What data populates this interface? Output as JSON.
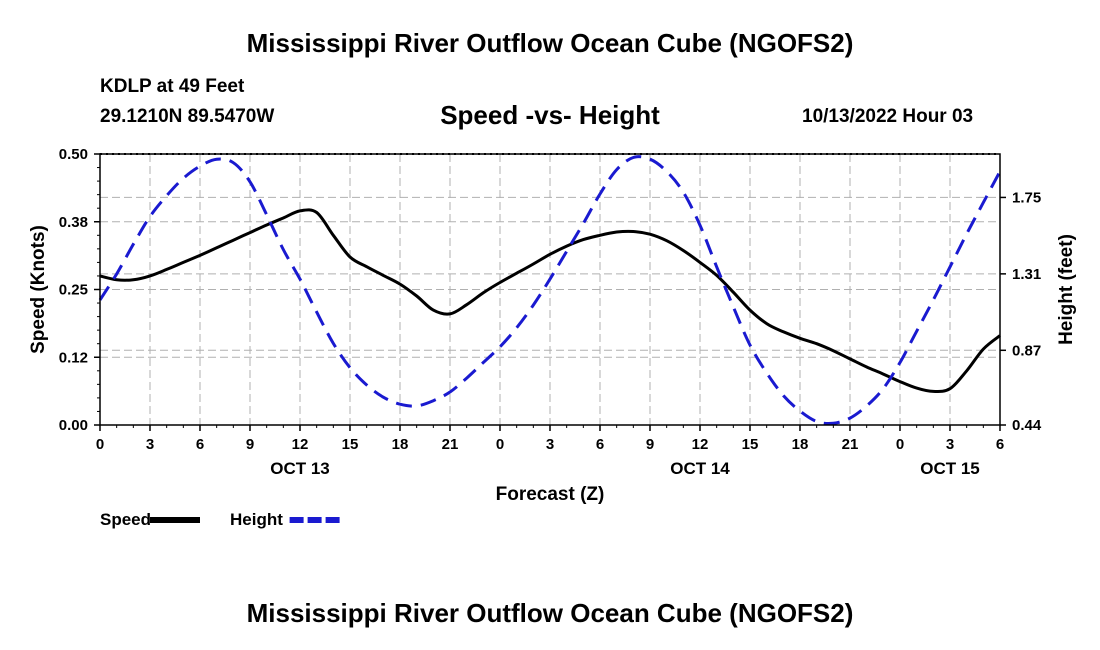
{
  "header": {
    "title": "Mississippi River Outflow Ocean Cube (NGOFS2)",
    "station": "KDLP at 49 Feet",
    "coordinates": "29.1210N  89.5470W",
    "subtitle": "Speed -vs- Height",
    "datetime": "10/13/2022 Hour 03"
  },
  "footer": {
    "title": "Mississippi River Outflow Ocean Cube (NGOFS2)"
  },
  "chart_data": {
    "type": "line",
    "title": "Speed -vs- Height",
    "xlabel": "Forecast (Z)",
    "ylabel": "Speed (Knots)",
    "y2label": "Height (feet)",
    "grid": true,
    "x_range_hours": [
      0,
      54
    ],
    "ylim": [
      0,
      0.5
    ],
    "y2lim": [
      0.44,
      2.0
    ],
    "x_tick_labels": [
      "0",
      "3",
      "6",
      "9",
      "12",
      "15",
      "18",
      "21",
      "0",
      "3",
      "6",
      "9",
      "12",
      "15",
      "18",
      "21",
      "0",
      "3",
      "6"
    ],
    "date_labels": [
      {
        "label": "OCT 13",
        "hour": 12
      },
      {
        "label": "OCT 14",
        "hour": 36
      },
      {
        "label": "OCT 15",
        "hour": 51
      }
    ],
    "y_ticks": [
      0.0,
      0.125,
      0.25,
      0.375,
      0.5
    ],
    "y_tick_labels": [
      "0.00",
      "0.12",
      "0.25",
      "0.38",
      "0.50"
    ],
    "y2_ticks": [
      0.44,
      0.87,
      1.31,
      1.75
    ],
    "y2_tick_labels": [
      "0.44",
      "0.87",
      "1.31",
      "1.75"
    ],
    "legend_position": "bottom-left",
    "series": [
      {
        "name": "Speed",
        "axis": "left",
        "color": "#000000",
        "style": "solid",
        "x": [
          0,
          1,
          2,
          3,
          4,
          5,
          6,
          7,
          8,
          9,
          10,
          11,
          12,
          13,
          14,
          15,
          16,
          17,
          18,
          19,
          20,
          21,
          22,
          23,
          24,
          25,
          26,
          27,
          28,
          29,
          30,
          31,
          32,
          33,
          34,
          35,
          36,
          37,
          38,
          39,
          40,
          41,
          42,
          43,
          44,
          45,
          46,
          47,
          48,
          49,
          50,
          51,
          52,
          53,
          54
        ],
        "values": [
          0.275,
          0.268,
          0.268,
          0.275,
          0.287,
          0.3,
          0.313,
          0.327,
          0.341,
          0.355,
          0.369,
          0.382,
          0.395,
          0.392,
          0.35,
          0.31,
          0.292,
          0.276,
          0.26,
          0.238,
          0.212,
          0.205,
          0.222,
          0.244,
          0.263,
          0.28,
          0.297,
          0.315,
          0.33,
          0.342,
          0.35,
          0.356,
          0.357,
          0.352,
          0.34,
          0.322,
          0.3,
          0.276,
          0.245,
          0.212,
          0.187,
          0.172,
          0.16,
          0.15,
          0.137,
          0.122,
          0.107,
          0.094,
          0.08,
          0.068,
          0.062,
          0.067,
          0.1,
          0.14,
          0.165
        ]
      },
      {
        "name": "Height",
        "axis": "right",
        "color": "#1a1ad0",
        "style": "dashed",
        "x": [
          0,
          1,
          2,
          3,
          4,
          5,
          6,
          7,
          8,
          9,
          10,
          11,
          12,
          13,
          14,
          15,
          16,
          17,
          18,
          19,
          20,
          21,
          22,
          23,
          24,
          25,
          26,
          27,
          28,
          29,
          30,
          31,
          32,
          33,
          34,
          35,
          36,
          37,
          38,
          39,
          40,
          41,
          42,
          43,
          44,
          45,
          46,
          47,
          48,
          49,
          50,
          51,
          52,
          53,
          54
        ],
        "values": [
          1.16,
          1.31,
          1.48,
          1.64,
          1.76,
          1.86,
          1.93,
          1.97,
          1.95,
          1.84,
          1.65,
          1.45,
          1.28,
          1.09,
          0.91,
          0.77,
          0.67,
          0.6,
          0.56,
          0.55,
          0.58,
          0.63,
          0.71,
          0.8,
          0.89,
          1.0,
          1.13,
          1.28,
          1.44,
          1.6,
          1.77,
          1.91,
          1.98,
          1.97,
          1.9,
          1.78,
          1.59,
          1.35,
          1.12,
          0.9,
          0.74,
          0.61,
          0.52,
          0.46,
          0.45,
          0.48,
          0.55,
          0.65,
          0.8,
          0.98,
          1.16,
          1.35,
          1.54,
          1.72,
          1.9
        ]
      }
    ]
  }
}
